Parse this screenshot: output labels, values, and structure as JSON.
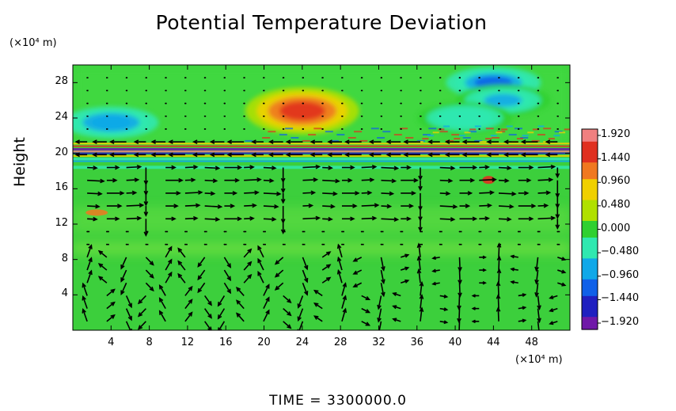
{
  "chart_data": {
    "type": "heatmap",
    "title": "Potential Temperature Deviation",
    "ylabel": "Height",
    "y_unit": "(×10⁴ m)",
    "x_unit": "(×10⁴ m)",
    "xlim": [
      0,
      52
    ],
    "ylim": [
      0,
      30
    ],
    "x_ticks": [
      "4",
      "8",
      "12",
      "16",
      "20",
      "24",
      "28",
      "32",
      "36",
      "40",
      "44",
      "48"
    ],
    "y_ticks": [
      "4",
      "8",
      "12",
      "16",
      "20",
      "24",
      "28"
    ],
    "colorbar": {
      "min": -1.92,
      "max": 1.92,
      "labels": [
        "1.920",
        "1.440",
        "0.960",
        "0.480",
        "0.000",
        "−0.480",
        "−0.960",
        "−1.440",
        "−1.920"
      ],
      "colors": [
        "#f08080",
        "#e03020",
        "#f07820",
        "#f0d000",
        "#b0e000",
        "#30d030",
        "#30e8b0",
        "#10a8e8",
        "#1060e8",
        "#2020c0",
        "#7018a8"
      ]
    },
    "features": [
      {
        "kind": "warm",
        "x": 24,
        "y": 24.8,
        "peak": 1.55
      },
      {
        "kind": "cool",
        "x": 44,
        "y": 28,
        "peak": -1.1
      },
      {
        "kind": "cool",
        "x": 45,
        "y": 26,
        "peak": -0.7
      },
      {
        "kind": "cool",
        "x": 4,
        "y": 23.5,
        "peak": -0.8
      },
      {
        "kind": "cool",
        "x": 41,
        "y": 24,
        "peak": -0.5
      }
    ],
    "wind_field": "arrows",
    "footer": "TIME  =  3300000.0"
  }
}
